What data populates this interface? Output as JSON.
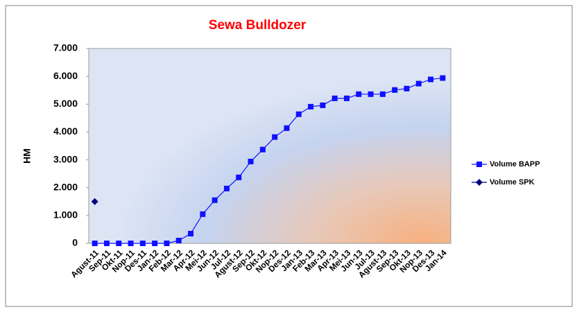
{
  "chart_data": {
    "type": "line",
    "title": "Sewa Bulldozer",
    "y_label": "HM",
    "categories": [
      "Agust-11",
      "Sep-11",
      "Okt-11",
      "Nop-11",
      "Des-11",
      "Jan-12",
      "Feb-12",
      "Mar-12",
      "Apr-12",
      "Mei-12",
      "Jun-12",
      "Jul-12",
      "Agust-12",
      "Sep-12",
      "Okt-12",
      "Nop-12",
      "Des-12",
      "Jan-13",
      "Feb-13",
      "Mar-13",
      "Apr-13",
      "Mei-13",
      "Jun-13",
      "Jul-13",
      "Agust-13",
      "Sep-13",
      "Okt-13",
      "Nop-13",
      "Des-13",
      "Jan-14"
    ],
    "series": [
      {
        "name": "Volume BAPP",
        "color": "#1010ff",
        "marker": "square",
        "values": [
          0,
          0,
          0,
          0,
          0,
          0,
          0,
          100,
          350,
          1050,
          1550,
          1970,
          2370,
          2940,
          3370,
          3820,
          4140,
          4640,
          4910,
          4960,
          5210,
          5210,
          5360,
          5360,
          5360,
          5510,
          5560,
          5740,
          5890,
          5940
        ]
      },
      {
        "name": "Volume SPK",
        "color": "#000080",
        "marker": "diamond",
        "values": [
          1500,
          null,
          null,
          null,
          null,
          null,
          null,
          null,
          null,
          null,
          null,
          null,
          null,
          null,
          null,
          null,
          null,
          null,
          null,
          null,
          null,
          null,
          null,
          null,
          null,
          null,
          null,
          null,
          null,
          null
        ]
      }
    ],
    "ylim": [
      0,
      7000
    ],
    "yticks": [
      0,
      {
        "value": 1000,
        "label": "1.000"
      },
      {
        "value": 2000,
        "label": "2.000"
      },
      {
        "value": 3000,
        "label": "3.000"
      },
      {
        "value": 4000,
        "label": "4.000"
      },
      {
        "value": 5000,
        "label": "5.000"
      },
      {
        "value": 6000,
        "label": "6.000"
      },
      {
        "value": 7000,
        "label": "7.000"
      }
    ],
    "grid": false,
    "legend": "right"
  }
}
